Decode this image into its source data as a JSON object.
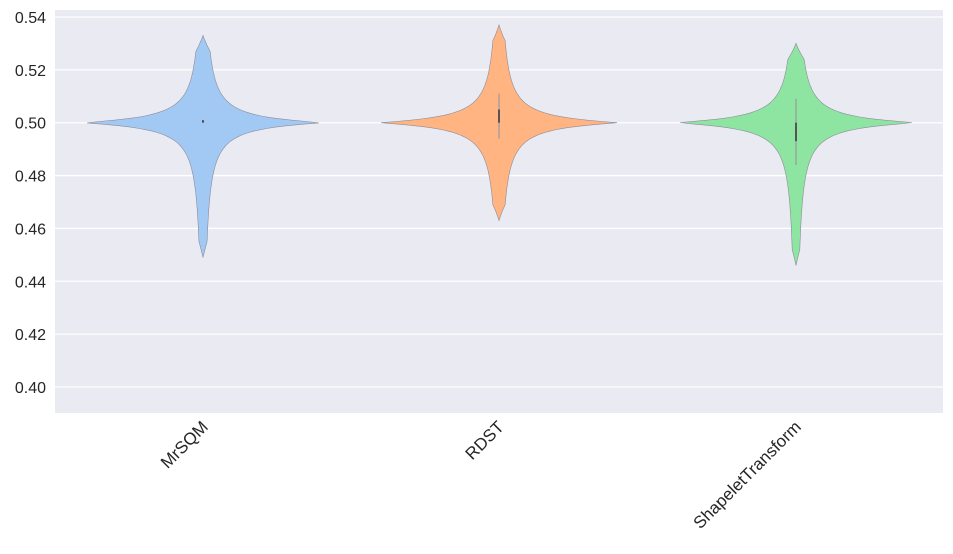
{
  "chart_data": {
    "type": "violin",
    "title": "",
    "xlabel": "",
    "ylabel": "",
    "categories": [
      "MrSQM",
      "RDST",
      "ShapeletTransform"
    ],
    "ylim": [
      0.39,
      0.542
    ],
    "yticks": [
      0.4,
      0.42,
      0.44,
      0.46,
      0.48,
      0.5,
      0.52,
      0.54
    ],
    "ytick_labels": [
      "0.40",
      "0.42",
      "0.44",
      "0.46",
      "0.48",
      "0.50",
      "0.52",
      "0.54"
    ],
    "grid": true,
    "legend": null,
    "xtick_rotation": 45,
    "background": "#eaeaf2",
    "series": [
      {
        "name": "MrSQM",
        "color": "#a1c9f4",
        "min": 0.449,
        "max": 0.533,
        "median": 0.5005,
        "q1": 0.5,
        "q3": 0.501,
        "whisker_low": 0.5,
        "whisker_high": 0.501,
        "mode": 0.5
      },
      {
        "name": "RDST",
        "color": "#ffb482",
        "min": 0.463,
        "max": 0.537,
        "median": 0.503,
        "q1": 0.5,
        "q3": 0.505,
        "whisker_low": 0.494,
        "whisker_high": 0.511,
        "mode": 0.5
      },
      {
        "name": "ShapeletTransform",
        "color": "#8de5a1",
        "min": 0.446,
        "max": 0.53,
        "median": 0.4985,
        "q1": 0.493,
        "q3": 0.5,
        "whisker_low": 0.484,
        "whisker_high": 0.509,
        "mode": 0.5
      }
    ]
  }
}
